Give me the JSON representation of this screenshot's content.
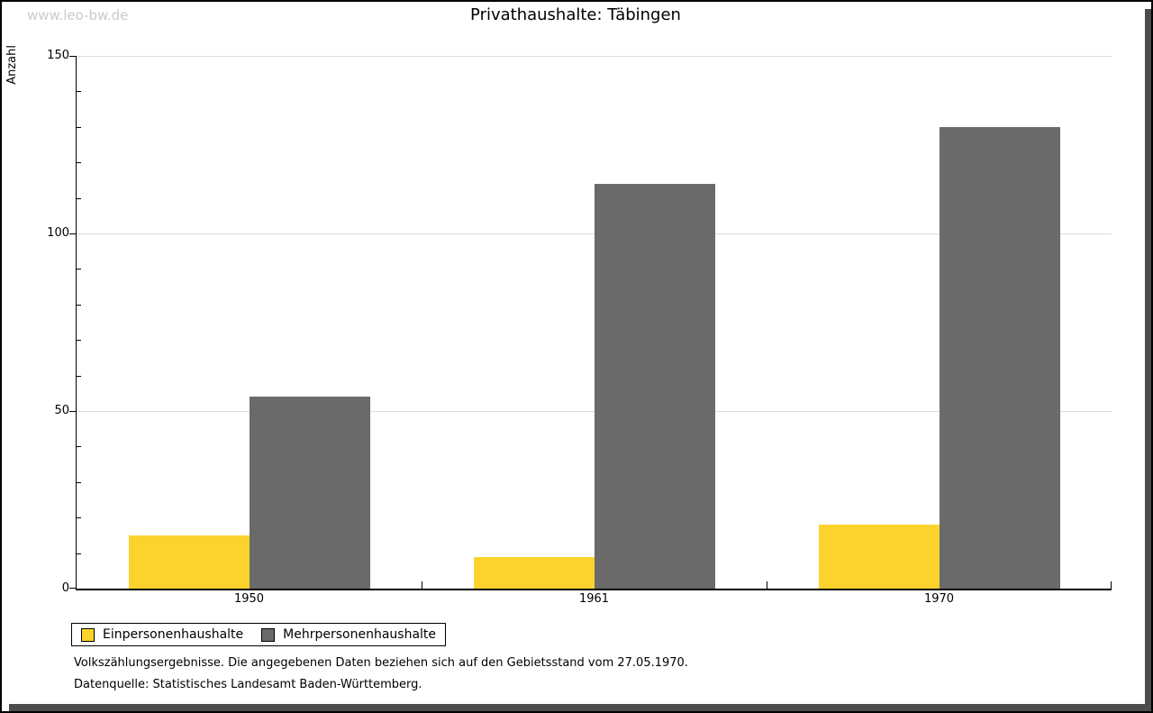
{
  "watermark": "www.leo-bw.de",
  "title": "Privathaushalte: Täbingen",
  "chart_data": {
    "type": "bar",
    "title": "Privathaushalte: Täbingen",
    "xlabel": "",
    "ylabel": "Anzahl",
    "categories": [
      "1950",
      "1961",
      "1970"
    ],
    "series": [
      {
        "name": "Einpersonenhaushalte",
        "color": "#fcd32d",
        "values": [
          15,
          9,
          18
        ]
      },
      {
        "name": "Mehrpersonenhaushalte",
        "color": "#6a6a6a",
        "values": [
          54,
          114,
          130
        ]
      }
    ],
    "ylim": [
      0,
      150
    ],
    "yticks_major": [
      0,
      50,
      100,
      150
    ],
    "ytick_minor_step": 10,
    "grid": "horizontal gridlines at major ticks (50, 100, 150)",
    "legend_position": "bottom-left, boxed, below plot"
  },
  "footnotes": {
    "line1": "Volkszählungsergebnisse. Die angegebenen Daten beziehen sich auf den Gebietsstand vom 27.05.1970.",
    "line2": "Datenquelle: Statistisches Landesamt Baden-Württemberg."
  },
  "colors": {
    "series1": "#fcd32d",
    "series2": "#6a6a6a",
    "gridline": "#dcdcdc",
    "axis": "#000000",
    "watermark": "#cbcbcb",
    "frame_shadow": "#4c4c4c",
    "background": "#ffffff"
  }
}
